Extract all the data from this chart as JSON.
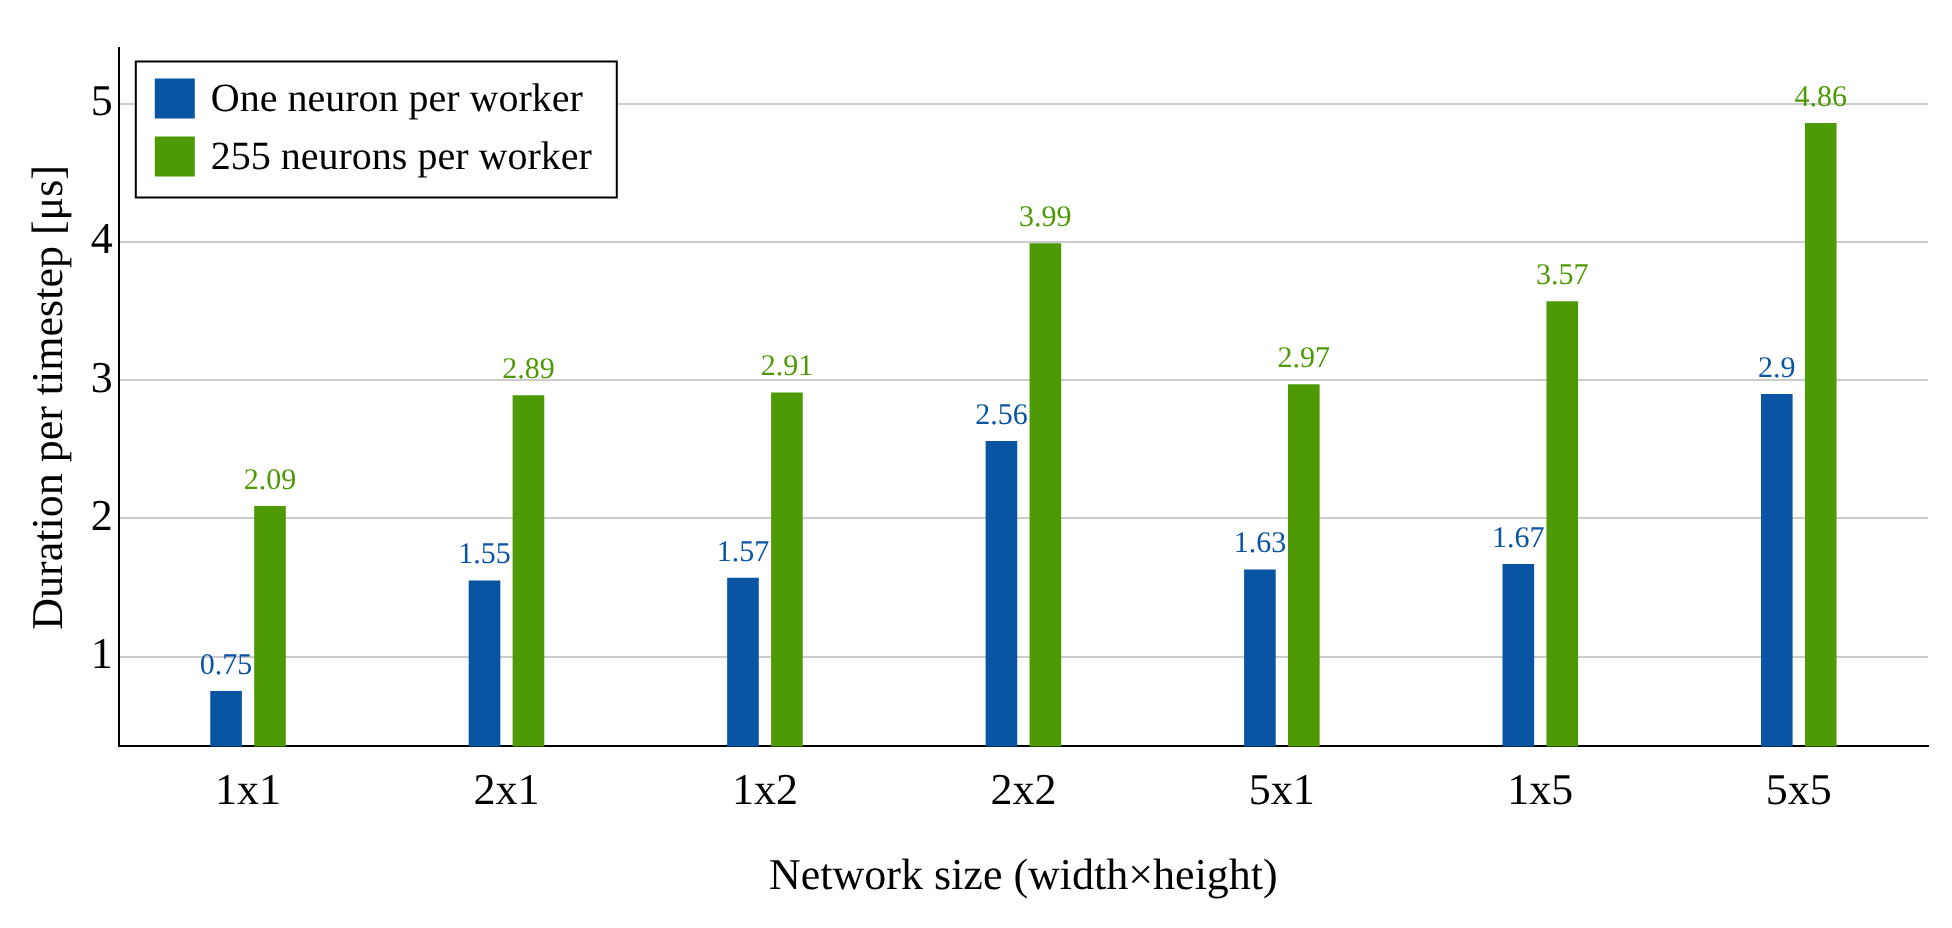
{
  "chart_data": {
    "type": "bar",
    "xlabel": "Network size (width×height)",
    "ylabel": "Duration per timestep [μs]",
    "categories": [
      "1x1",
      "2x1",
      "1x2",
      "2x2",
      "5x1",
      "1x5",
      "5x5"
    ],
    "series": [
      {
        "name": "One neuron per worker",
        "color": "#0a55a3",
        "values": [
          0.75,
          1.55,
          1.57,
          2.56,
          1.63,
          1.67,
          2.9
        ]
      },
      {
        "name": "255 neurons per worker",
        "color": "#4e9a06",
        "values": [
          2.09,
          2.89,
          2.91,
          3.99,
          2.97,
          3.57,
          4.86
        ]
      }
    ],
    "ylim": [
      0.35,
      5.4
    ],
    "yticks": [
      1,
      2,
      3,
      4,
      5
    ],
    "grid": "y",
    "legend": "top left",
    "data_labels": true
  }
}
